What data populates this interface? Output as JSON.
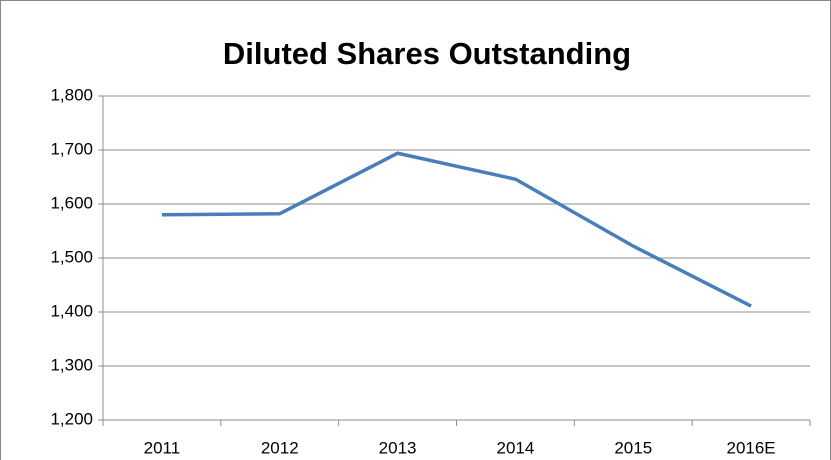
{
  "chart_data": {
    "type": "line",
    "title": "Diluted Shares Outstanding",
    "categories": [
      "2011",
      "2012",
      "2013",
      "2014",
      "2015",
      "2016E"
    ],
    "series": [
      {
        "name": "Diluted Shares Outstanding",
        "color": "#4a7ebb",
        "values": [
          1580,
          1582,
          1694,
          1646,
          1522,
          1411
        ]
      }
    ],
    "ylim": [
      1200,
      1800
    ],
    "yticks": [
      {
        "value": 1200,
        "label": "1,200"
      },
      {
        "value": 1300,
        "label": "1,300"
      },
      {
        "value": 1400,
        "label": "1,400"
      },
      {
        "value": 1500,
        "label": "1,500"
      },
      {
        "value": 1600,
        "label": "1,600"
      },
      {
        "value": 1700,
        "label": "1,700"
      },
      {
        "value": 1800,
        "label": "1,800"
      }
    ],
    "grid": true
  }
}
